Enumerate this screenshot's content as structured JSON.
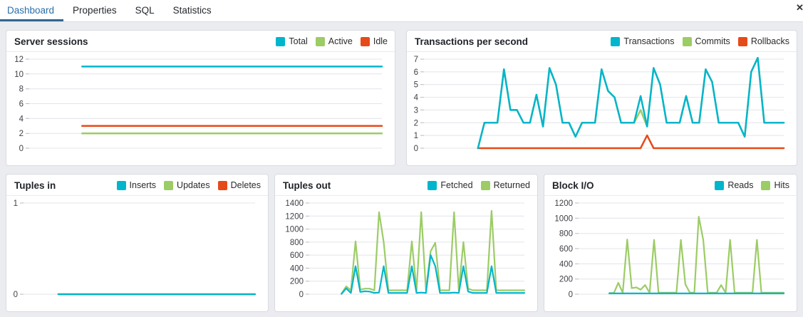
{
  "window": {
    "close_icon": "✕"
  },
  "tabs": [
    {
      "label": "Dashboard",
      "active": true
    },
    {
      "label": "Properties",
      "active": false
    },
    {
      "label": "SQL",
      "active": false
    },
    {
      "label": "Statistics",
      "active": false
    }
  ],
  "colors": {
    "series_cyan": "#00b5cc",
    "series_green": "#9CCC65",
    "series_orange": "#E64A19",
    "tab_active_text": "#2a6ea9",
    "tab_underline": "#326690",
    "gridline": "#e2e4ea"
  },
  "chart_data": [
    {
      "type": "line",
      "title": "Server sessions",
      "ylim": [
        0,
        12
      ],
      "yticks": [
        0,
        2,
        4,
        6,
        8,
        10,
        12
      ],
      "start_frac": 0.15,
      "stroke_width": 2.5,
      "grid": true,
      "legend_position": "header-right",
      "series": [
        {
          "name": "Total",
          "color": "#00b5cc",
          "values": [
            11,
            11,
            11,
            11,
            11,
            11,
            11,
            11,
            11,
            11
          ]
        },
        {
          "name": "Active",
          "color": "#9CCC65",
          "values": [
            2,
            2,
            2,
            2,
            2,
            2,
            2,
            2,
            2,
            2
          ]
        },
        {
          "name": "Idle",
          "color": "#E64A19",
          "values": [
            3,
            3,
            3,
            3,
            3,
            3,
            3,
            3,
            3,
            3
          ]
        }
      ]
    },
    {
      "type": "line",
      "title": "Transactions per second",
      "ylim": [
        0,
        7
      ],
      "yticks": [
        0,
        1,
        2,
        3,
        4,
        5,
        6,
        7
      ],
      "start_frac": 0.15,
      "stroke_width": 2.5,
      "grid": true,
      "legend_position": "header-right",
      "series": [
        {
          "name": "Transactions",
          "color": "#00b5cc",
          "values": [
            0,
            2,
            2,
            2,
            6.2,
            3,
            3,
            2,
            2,
            4.2,
            1.7,
            6.3,
            5,
            2,
            2,
            0.9,
            2,
            2,
            2,
            6.2,
            4.5,
            4,
            2,
            2,
            2,
            4.1,
            1.7,
            6.3,
            5,
            2,
            2,
            2,
            4.1,
            2,
            2,
            6.2,
            5.2,
            2,
            2,
            2,
            2,
            0.9,
            6,
            7.1,
            2,
            2,
            2,
            2
          ]
        },
        {
          "name": "Commits",
          "color": "#9CCC65",
          "values": [
            0,
            2,
            2,
            2,
            6.2,
            3,
            3,
            2,
            2,
            4.2,
            1.7,
            6.3,
            5,
            2,
            2,
            0.9,
            2,
            2,
            2,
            6.2,
            4.5,
            4,
            2,
            2,
            2,
            3,
            1.7,
            6.3,
            5,
            2,
            2,
            2,
            4.1,
            2,
            2,
            6.2,
            5.2,
            2,
            2,
            2,
            2,
            0.9,
            6,
            7.1,
            2,
            2,
            2,
            2
          ]
        },
        {
          "name": "Rollbacks",
          "color": "#E64A19",
          "values": [
            0,
            0,
            0,
            0,
            0,
            0,
            0,
            0,
            0,
            0,
            0,
            0,
            0,
            0,
            0,
            0,
            0,
            0,
            0,
            0,
            0,
            0,
            0,
            0,
            0,
            0,
            1,
            0,
            0,
            0,
            0,
            0,
            0,
            0,
            0,
            0,
            0,
            0,
            0,
            0,
            0,
            0,
            0,
            0,
            0,
            0,
            0,
            0
          ]
        }
      ]
    },
    {
      "type": "line",
      "title": "Tuples in",
      "ylim": [
        0,
        1
      ],
      "yticks": [
        0,
        1
      ],
      "start_frac": 0.15,
      "stroke_width": 2.2,
      "grid": true,
      "legend_position": "header-right",
      "series": [
        {
          "name": "Inserts",
          "color": "#00b5cc",
          "values": [
            0,
            0,
            0,
            0,
            0,
            0,
            0,
            0,
            0,
            0
          ]
        },
        {
          "name": "Updates",
          "color": "#9CCC65",
          "values": [
            0,
            0,
            0,
            0,
            0,
            0,
            0,
            0,
            0,
            0
          ]
        },
        {
          "name": "Deletes",
          "color": "#E64A19",
          "values": [
            0,
            0,
            0,
            0,
            0,
            0,
            0,
            0,
            0,
            0
          ]
        }
      ]
    },
    {
      "type": "line",
      "title": "Tuples out",
      "ylim": [
        0,
        1400
      ],
      "yticks": [
        0,
        200,
        400,
        600,
        800,
        1000,
        1200,
        1400
      ],
      "start_frac": 0.15,
      "stroke_width": 2.2,
      "grid": true,
      "legend_position": "header-right",
      "series": [
        {
          "name": "Fetched",
          "color": "#00b5cc",
          "values": [
            5,
            90,
            20,
            430,
            35,
            45,
            40,
            20,
            25,
            430,
            20,
            20,
            20,
            20,
            20,
            430,
            20,
            25,
            20,
            600,
            430,
            20,
            20,
            20,
            25,
            20,
            430,
            40,
            20,
            20,
            20,
            20,
            430,
            20,
            20,
            20,
            20,
            20,
            20,
            20
          ]
        },
        {
          "name": "Returned",
          "color": "#9CCC65",
          "values": [
            10,
            120,
            60,
            810,
            70,
            85,
            85,
            60,
            1260,
            800,
            60,
            60,
            60,
            60,
            60,
            810,
            60,
            1260,
            60,
            660,
            790,
            60,
            60,
            60,
            1260,
            60,
            800,
            85,
            60,
            60,
            60,
            60,
            1280,
            60,
            60,
            60,
            60,
            60,
            60,
            60
          ]
        }
      ]
    },
    {
      "type": "line",
      "title": "Block I/O",
      "ylim": [
        0,
        1200
      ],
      "yticks": [
        0,
        200,
        400,
        600,
        800,
        1000,
        1200
      ],
      "start_frac": 0.15,
      "stroke_width": 2.2,
      "grid": true,
      "legend_position": "header-right",
      "series": [
        {
          "name": "Reads",
          "color": "#00b5cc",
          "values": [
            10,
            10,
            10,
            10,
            10,
            10,
            10,
            10,
            10,
            10,
            10,
            10,
            10,
            10,
            10,
            10,
            10,
            10,
            10,
            10,
            10,
            10,
            10,
            10,
            10,
            10,
            10,
            10,
            10,
            10,
            10,
            10,
            10,
            10,
            10,
            10,
            10,
            10,
            10,
            10
          ]
        },
        {
          "name": "Hits",
          "color": "#9CCC65",
          "values": [
            15,
            15,
            150,
            20,
            720,
            80,
            90,
            60,
            120,
            20,
            715,
            20,
            20,
            20,
            20,
            20,
            715,
            130,
            20,
            20,
            1020,
            715,
            20,
            20,
            20,
            120,
            20,
            715,
            20,
            20,
            20,
            20,
            20,
            715,
            20,
            20,
            20,
            20,
            20,
            20
          ]
        }
      ]
    }
  ]
}
